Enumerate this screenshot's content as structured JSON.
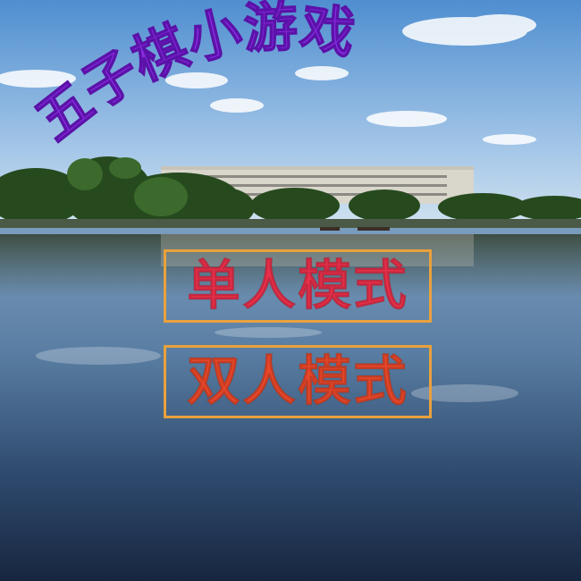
{
  "title": "五子棋小游戏",
  "colors": {
    "title": "#8a2be2",
    "single_text": "#e8304a",
    "double_text": "#e8472a",
    "button_border": "#e9a13c",
    "sky_top": "#4f8ed0",
    "sky_bottom": "#c9dff0",
    "water_top": "#6f93b6",
    "water_bottom": "#1c2e4d"
  },
  "menu": {
    "single_player_label": "单人模式",
    "two_player_label": "双人模式"
  }
}
